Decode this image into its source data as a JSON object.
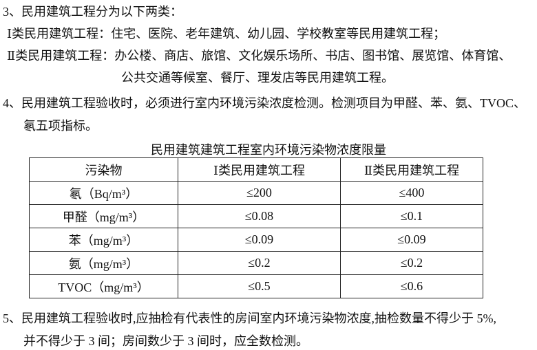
{
  "paragraphs": {
    "p3_heading": "3、民用建筑工程分为以下两类：",
    "p3_class1": "Ⅰ类民用建筑工程：住宅、医院、老年建筑、幼儿园、学校教室等民用建筑工程；",
    "p3_class2_line1": "Ⅱ类民用建筑工程：办公楼、商店、旅馆、文化娱乐场所、书店、图书馆、展览馆、体育馆、",
    "p3_class2_line2": "公共交通等候室、餐厅、理发店等民用建筑工程。",
    "p4_line1": "4、民用建筑工程验收时，必须进行室内环境污染浓度检测。检测项目为甲醛、苯、氨、TVOC、",
    "p4_line2": "氡五项指标。",
    "p5_line1": "5、民用建筑工程验收时,应抽检有代表性的房间室内环境污染物浓度,抽检数量不得少于 5%,",
    "p5_line2": "并不得少于 3 间；房间数少于 3 间时，应全数检测。"
  },
  "table": {
    "title": "民用建筑建筑工程室内环境污染物浓度限量",
    "headers": [
      "污染物",
      "Ⅰ类民用建筑工程",
      "Ⅱ类民用建筑工程"
    ],
    "rows": [
      [
        "氡（Bq/m³）",
        "≤200",
        "≤400"
      ],
      [
        "甲醛（mg/m³）",
        "≤0.08",
        "≤0.1"
      ],
      [
        "苯（mg/m³）",
        "≤0.09",
        "≤0.09"
      ],
      [
        "氨（mg/m³）",
        "≤0.2",
        "≤0.2"
      ],
      [
        "TVOC（mg/m³）",
        "≤0.5",
        "≤0.6"
      ]
    ]
  }
}
